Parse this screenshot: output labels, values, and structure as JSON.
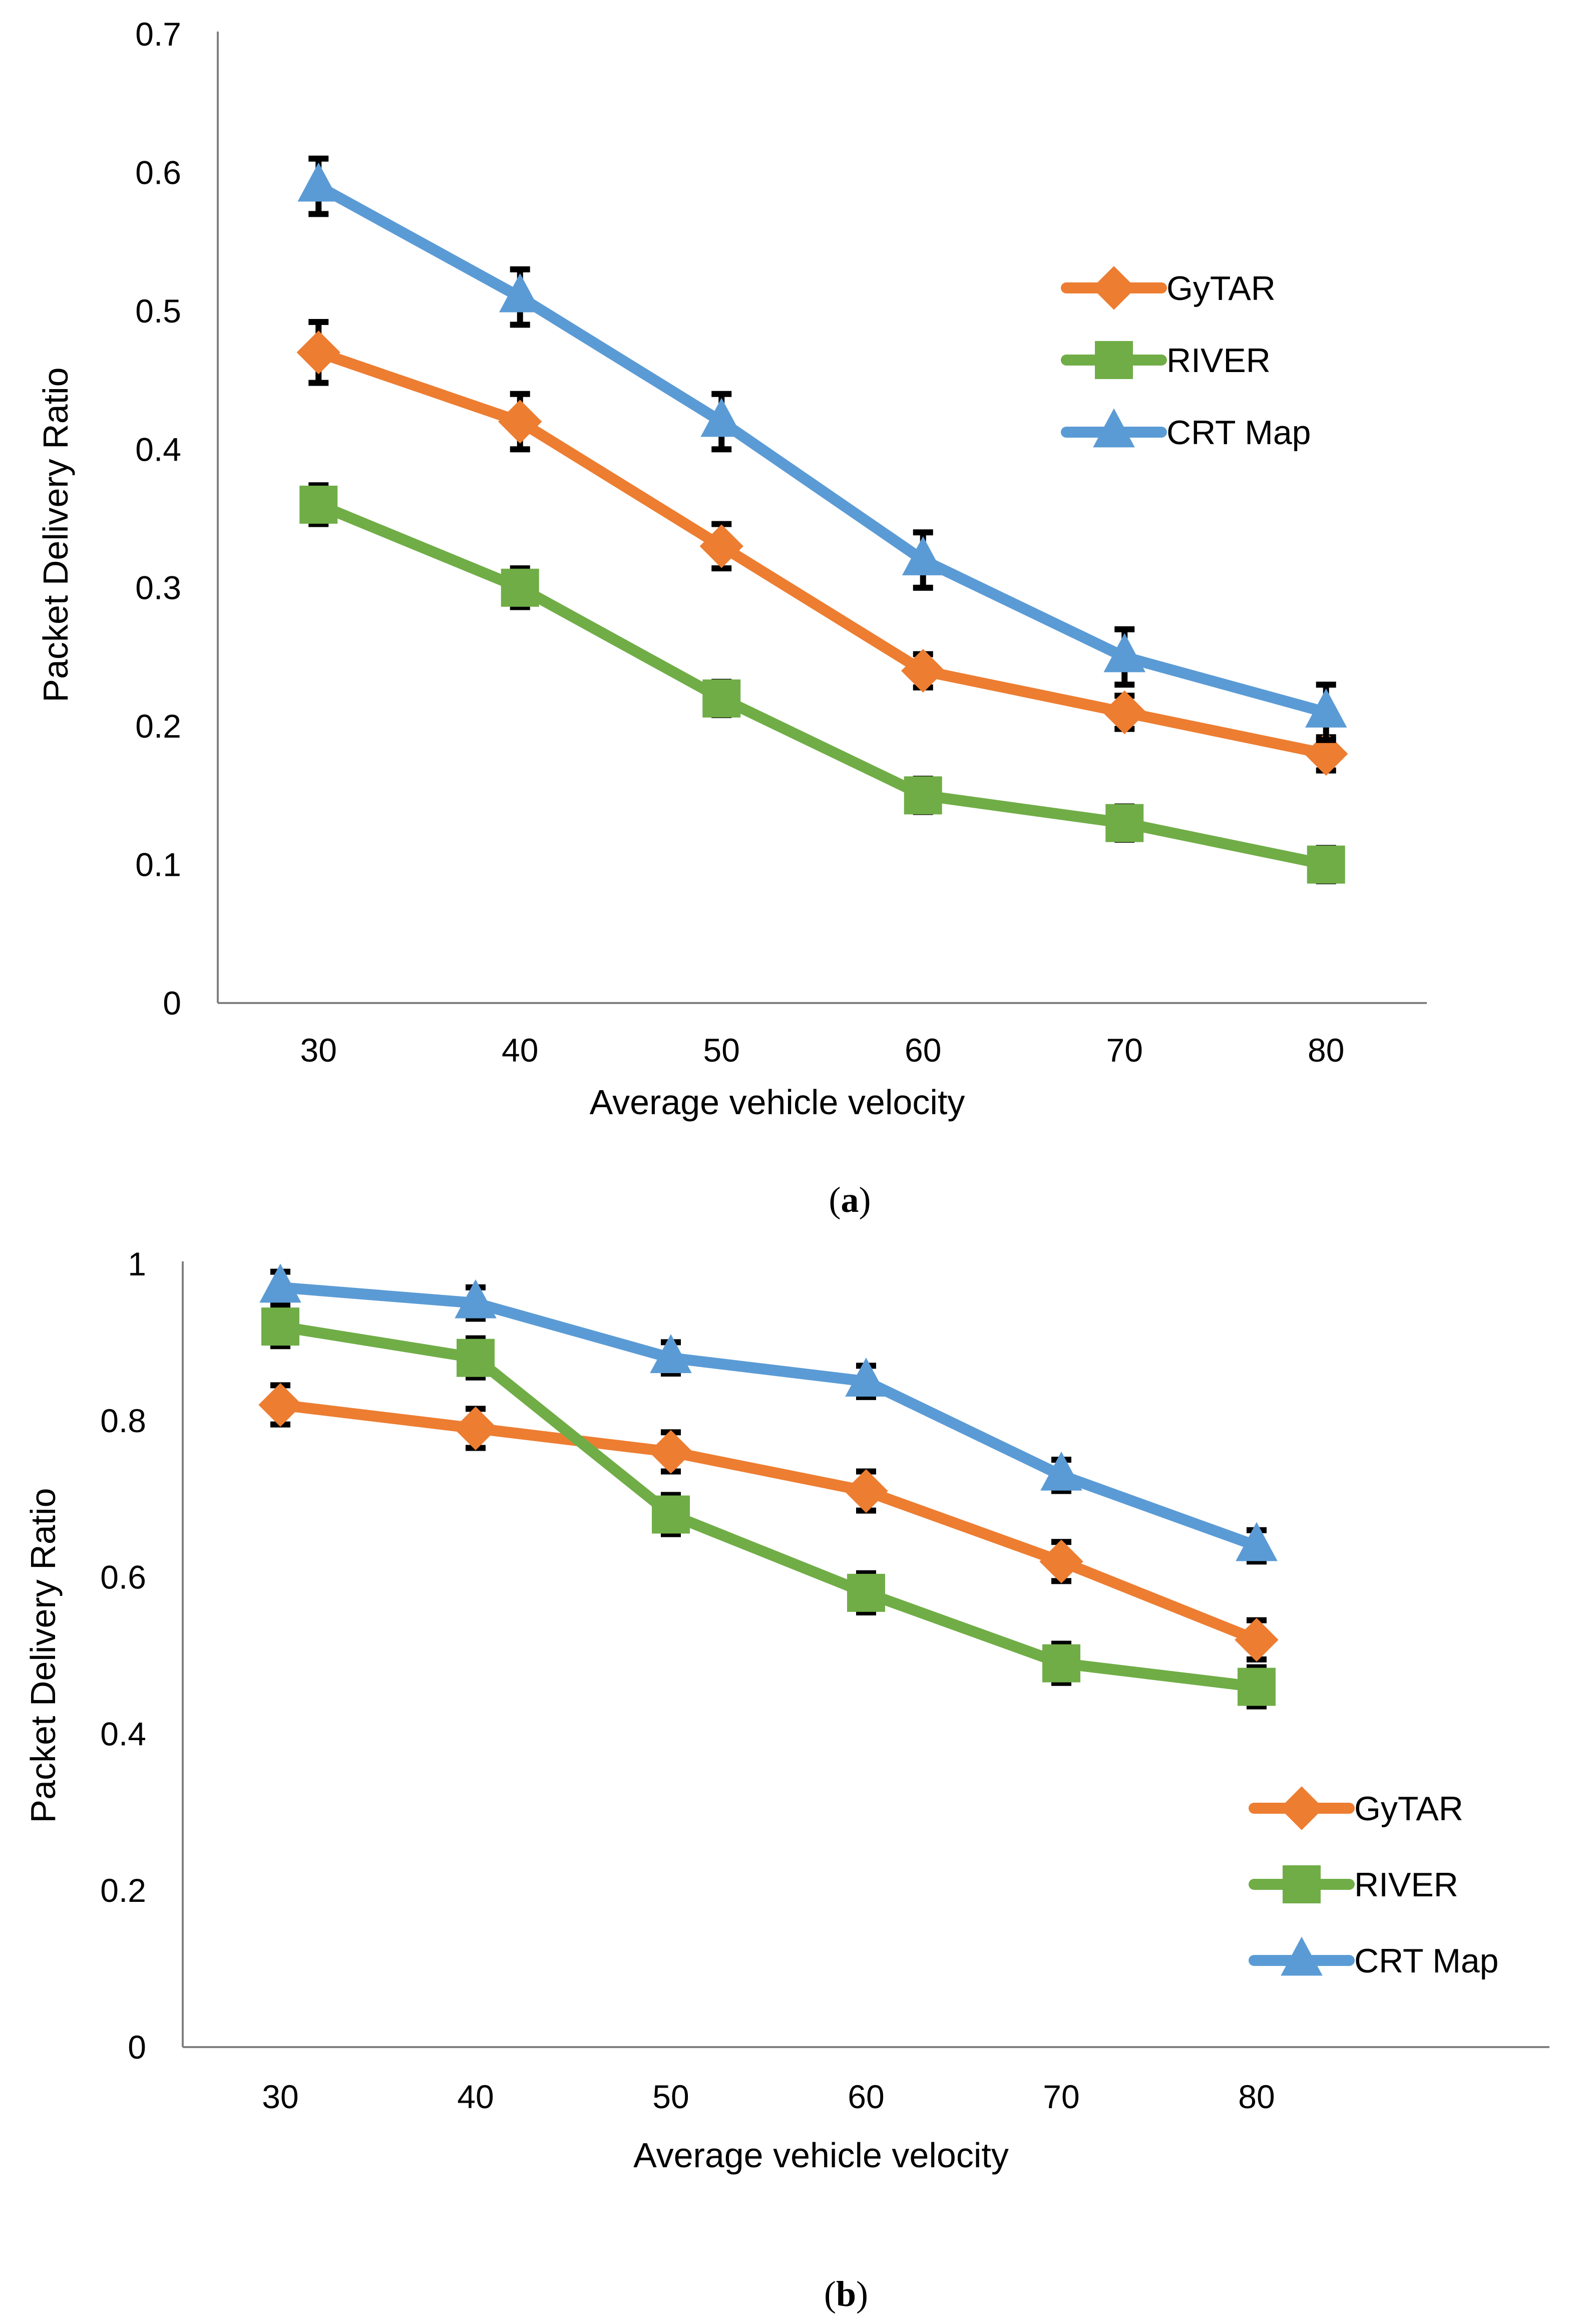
{
  "chart_data": [
    {
      "type": "line",
      "panel_id": "a",
      "caption_open": "(",
      "caption_letter": "a",
      "caption_close": ")",
      "xlabel": "Average vehicle velocity",
      "ylabel": "Packet Delivery Ratio",
      "categories": [
        "30",
        "40",
        "50",
        "60",
        "70",
        "80"
      ],
      "ylim": [
        0,
        0.7
      ],
      "yticks": [
        0,
        0.1,
        0.2,
        0.3,
        0.4,
        0.5,
        0.6,
        0.7
      ],
      "ytick_labels": [
        "0",
        "0.1",
        "0.2",
        "0.3",
        "0.4",
        "0.5",
        "0.6",
        "0.7"
      ],
      "legend_position": "upper-right",
      "grid": false,
      "error_bars": true,
      "series": [
        {
          "name": "GyTAR",
          "color": "#ED7D31",
          "marker": "diamond",
          "values": [
            0.47,
            0.42,
            0.33,
            0.24,
            0.21,
            0.18
          ],
          "errors": [
            0.022,
            0.02,
            0.016,
            0.012,
            0.012,
            0.012
          ]
        },
        {
          "name": "RIVER",
          "color": "#70AD47",
          "marker": "square",
          "values": [
            0.36,
            0.3,
            0.22,
            0.15,
            0.13,
            0.1
          ],
          "errors": [
            0.014,
            0.014,
            0.012,
            0.012,
            0.012,
            0.012
          ]
        },
        {
          "name": "CRT Map",
          "color": "#5B9BD5",
          "marker": "triangle",
          "values": [
            0.59,
            0.51,
            0.42,
            0.32,
            0.25,
            0.21
          ],
          "errors": [
            0.02,
            0.02,
            0.02,
            0.02,
            0.02,
            0.02
          ]
        }
      ]
    },
    {
      "type": "line",
      "panel_id": "b",
      "caption_open": "(",
      "caption_letter": "b",
      "caption_close": ")",
      "xlabel": "Average vehicle velocity",
      "ylabel": "Packet Delivery Ratio",
      "categories": [
        "30",
        "40",
        "50",
        "60",
        "70",
        "80"
      ],
      "x_slots": 7,
      "ylim": [
        0,
        1
      ],
      "yticks": [
        0,
        0.2,
        0.4,
        0.6,
        0.8,
        1
      ],
      "ytick_labels": [
        "0",
        "0.2",
        "0.4",
        "0.6",
        "0.8",
        "1"
      ],
      "legend_position": "lower-right",
      "grid": false,
      "error_bars": true,
      "series": [
        {
          "name": "GyTAR",
          "color": "#ED7D31",
          "marker": "diamond",
          "values": [
            0.82,
            0.79,
            0.76,
            0.71,
            0.62,
            0.52
          ],
          "errors": [
            0.025,
            0.025,
            0.025,
            0.025,
            0.025,
            0.025
          ]
        },
        {
          "name": "RIVER",
          "color": "#70AD47",
          "marker": "square",
          "values": [
            0.92,
            0.88,
            0.68,
            0.58,
            0.49,
            0.46
          ],
          "errors": [
            0.025,
            0.025,
            0.025,
            0.025,
            0.025,
            0.025
          ]
        },
        {
          "name": "CRT Map",
          "color": "#5B9BD5",
          "marker": "triangle",
          "values": [
            0.97,
            0.95,
            0.88,
            0.85,
            0.73,
            0.64
          ],
          "errors": [
            0.02,
            0.02,
            0.02,
            0.02,
            0.02,
            0.02
          ]
        }
      ]
    }
  ]
}
